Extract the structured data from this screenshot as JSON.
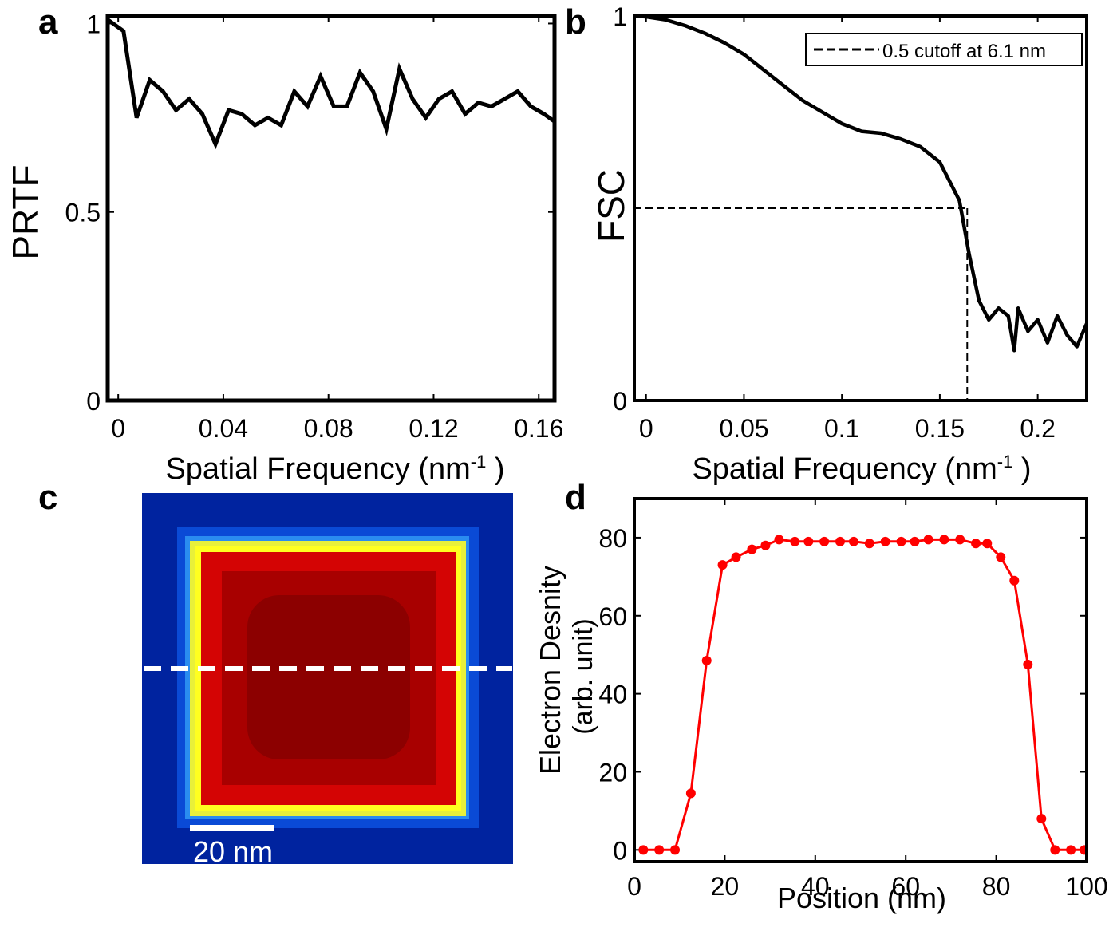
{
  "panel_labels": {
    "a": "a",
    "b": "b",
    "c": "c",
    "d": "d"
  },
  "chart_data": [
    {
      "panel": "a",
      "type": "line",
      "xlabel": "Spatial Frequency (nm",
      "xlabel_sup": "-1",
      "xlabel_close": " )",
      "ylabel": "PRTF",
      "xlim": [
        -0.004,
        0.166
      ],
      "ylim": [
        0,
        1.02
      ],
      "xticks": [
        0,
        0.04,
        0.08,
        0.12,
        0.16
      ],
      "xtick_labels": [
        "0",
        "0.04",
        "0.08",
        "0.12",
        "0.16"
      ],
      "yticks": [
        0,
        0.5,
        1
      ],
      "ytick_labels": [
        "0",
        "0.5",
        "1"
      ],
      "color": "#000000",
      "series": [
        {
          "x": [
            -0.004,
            0.002,
            0.007,
            0.012,
            0.017,
            0.022,
            0.027,
            0.032,
            0.037,
            0.042,
            0.047,
            0.052,
            0.057,
            0.062,
            0.067,
            0.072,
            0.077,
            0.082,
            0.087,
            0.092,
            0.097,
            0.102,
            0.107,
            0.112,
            0.117,
            0.122,
            0.127,
            0.132,
            0.137,
            0.142,
            0.147,
            0.152,
            0.157,
            0.162,
            0.166
          ],
          "y": [
            1.01,
            0.98,
            0.75,
            0.85,
            0.82,
            0.77,
            0.8,
            0.76,
            0.68,
            0.77,
            0.76,
            0.73,
            0.75,
            0.73,
            0.82,
            0.78,
            0.86,
            0.78,
            0.78,
            0.87,
            0.82,
            0.72,
            0.88,
            0.8,
            0.75,
            0.8,
            0.82,
            0.76,
            0.79,
            0.78,
            0.8,
            0.82,
            0.78,
            0.76,
            0.74
          ]
        }
      ]
    },
    {
      "panel": "b",
      "type": "line",
      "xlabel": "Spatial Frequency (nm",
      "xlabel_sup": "-1",
      "xlabel_close": " )",
      "ylabel": "FSC",
      "xlim": [
        -0.006,
        0.225
      ],
      "ylim": [
        0,
        1
      ],
      "xticks": [
        0,
        0.05,
        0.1,
        0.15,
        0.2
      ],
      "xtick_labels": [
        "0",
        "0.05",
        "0.1",
        "0.15",
        "0.2"
      ],
      "yticks": [
        0,
        1
      ],
      "ytick_labels": [
        "0",
        "1"
      ],
      "color": "#000000",
      "cutoff": {
        "x": 0.164,
        "y": 0.5,
        "legend": "0.5 cutoff at 6.1 nm"
      },
      "legend_position": "top-right",
      "series": [
        {
          "x": [
            -0.006,
            0.0,
            0.01,
            0.02,
            0.03,
            0.04,
            0.05,
            0.06,
            0.07,
            0.08,
            0.09,
            0.1,
            0.11,
            0.12,
            0.13,
            0.14,
            0.15,
            0.16,
            0.165,
            0.17,
            0.175,
            0.18,
            0.185,
            0.188,
            0.19,
            0.195,
            0.2,
            0.205,
            0.21,
            0.215,
            0.22,
            0.225
          ],
          "y": [
            1.0,
            0.998,
            0.99,
            0.975,
            0.955,
            0.93,
            0.9,
            0.86,
            0.82,
            0.78,
            0.75,
            0.72,
            0.7,
            0.695,
            0.68,
            0.66,
            0.62,
            0.52,
            0.38,
            0.26,
            0.21,
            0.24,
            0.22,
            0.13,
            0.24,
            0.18,
            0.21,
            0.15,
            0.22,
            0.17,
            0.14,
            0.2
          ]
        }
      ]
    },
    {
      "panel": "c",
      "type": "heatmap",
      "scale_bar_label": "20 nm",
      "colors": {
        "background": "#00239f",
        "frame": "#ffff20",
        "core": "#d80000",
        "line": "#ffffff"
      }
    },
    {
      "panel": "d",
      "type": "line",
      "xlabel": "Position (nm)",
      "ylabel": "Electron Desnity",
      "ylabel2": "(arb. unit)",
      "xlim": [
        0,
        100
      ],
      "ylim": [
        -3,
        90
      ],
      "xticks": [
        0,
        20,
        40,
        60,
        80,
        100
      ],
      "xtick_labels": [
        "0",
        "20",
        "40",
        "60",
        "80",
        "100"
      ],
      "yticks": [
        0,
        20,
        40,
        60,
        80
      ],
      "ytick_labels": [
        "0",
        "20",
        "40",
        "60",
        "80"
      ],
      "color": "#ff0000",
      "series": [
        {
          "x": [
            2,
            5.5,
            9,
            12.5,
            16,
            19.5,
            22.5,
            26,
            29,
            32,
            35.5,
            38.5,
            42,
            45.5,
            48.5,
            52,
            55.5,
            59,
            62,
            65,
            68.5,
            72,
            75.5,
            78,
            81,
            84,
            87,
            90,
            93,
            96.5,
            99.5
          ],
          "y": [
            0,
            0,
            0,
            14.5,
            48.5,
            73,
            75,
            77,
            78,
            79.5,
            79,
            79,
            79,
            79,
            79,
            78.5,
            79,
            79,
            79,
            79.5,
            79.5,
            79.5,
            78.5,
            78.5,
            75,
            69,
            47.5,
            8,
            0,
            0,
            0
          ]
        }
      ]
    }
  ]
}
